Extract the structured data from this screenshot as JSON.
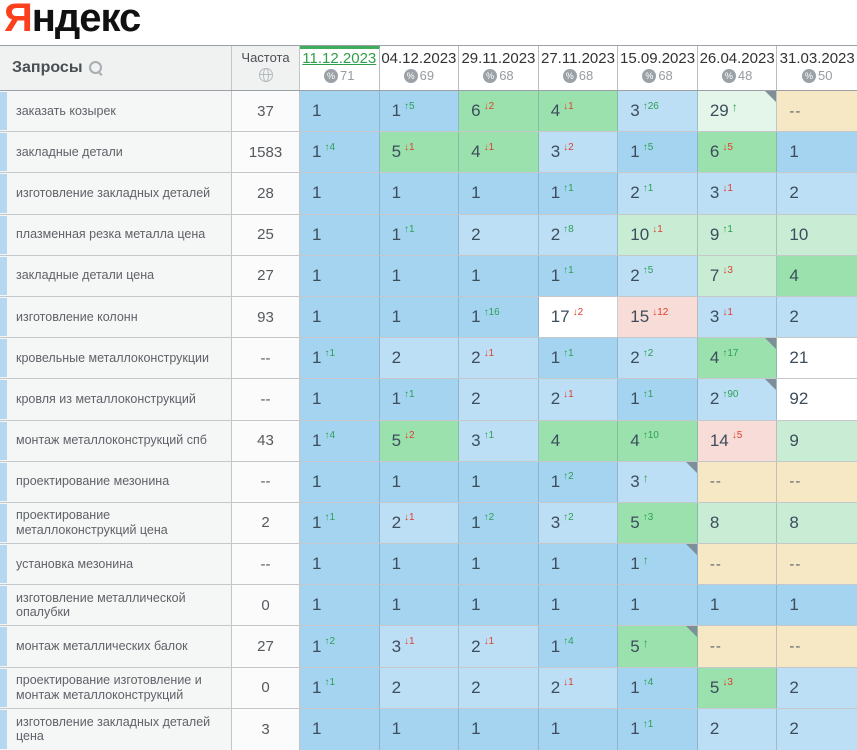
{
  "logo": {
    "ya": "Я",
    "rest": "ндекс"
  },
  "colors": {
    "b1": "#a5d4f1",
    "b2": "#bcdff6",
    "g1": "#9ae1ad",
    "g2": "#c8edd4",
    "g3": "#e4f5e9",
    "w": "#ffffff",
    "p": "#f8dcd8",
    "t": "#f6e8c5"
  },
  "header": {
    "queries_label": "Запросы",
    "frequency_label": "Частота",
    "percent_symbol": "%",
    "dates": [
      {
        "label": "11.12.2023",
        "coverage": "71",
        "selected": true
      },
      {
        "label": "04.12.2023",
        "coverage": "69",
        "selected": false
      },
      {
        "label": "29.11.2023",
        "coverage": "68",
        "selected": false
      },
      {
        "label": "27.11.2023",
        "coverage": "68",
        "selected": false
      },
      {
        "label": "15.09.2023",
        "coverage": "68",
        "selected": false
      },
      {
        "label": "26.04.2023",
        "coverage": "48",
        "selected": false
      },
      {
        "label": "31.03.2023",
        "coverage": "50",
        "selected": false
      }
    ]
  },
  "rows": [
    {
      "label": "заказать козырек",
      "freq": "37",
      "cells": [
        {
          "v": "1",
          "bg": "b1"
        },
        {
          "v": "1",
          "d": "5",
          "dir": "up",
          "bg": "b1"
        },
        {
          "v": "6",
          "d": "2",
          "dir": "down",
          "bg": "g1"
        },
        {
          "v": "4",
          "d": "1",
          "dir": "down",
          "bg": "g1"
        },
        {
          "v": "3",
          "d": "26",
          "dir": "up",
          "bg": "b2"
        },
        {
          "v": "29",
          "dir": "up",
          "bg": "g3",
          "corner": true
        },
        {
          "v": "--",
          "bg": "t"
        }
      ]
    },
    {
      "label": "закладные детали",
      "freq": "1583",
      "cells": [
        {
          "v": "1",
          "d": "4",
          "dir": "up",
          "bg": "b1"
        },
        {
          "v": "5",
          "d": "1",
          "dir": "down",
          "bg": "g1"
        },
        {
          "v": "4",
          "d": "1",
          "dir": "down",
          "bg": "g1"
        },
        {
          "v": "3",
          "d": "2",
          "dir": "down",
          "bg": "b2"
        },
        {
          "v": "1",
          "d": "5",
          "dir": "up",
          "bg": "b1"
        },
        {
          "v": "6",
          "d": "5",
          "dir": "down",
          "bg": "g1"
        },
        {
          "v": "1",
          "bg": "b1"
        }
      ]
    },
    {
      "label": "изготовление закладных деталей",
      "freq": "28",
      "cells": [
        {
          "v": "1",
          "bg": "b1"
        },
        {
          "v": "1",
          "bg": "b1"
        },
        {
          "v": "1",
          "bg": "b1"
        },
        {
          "v": "1",
          "d": "1",
          "dir": "up",
          "bg": "b1"
        },
        {
          "v": "2",
          "d": "1",
          "dir": "up",
          "bg": "b2"
        },
        {
          "v": "3",
          "d": "1",
          "dir": "down",
          "bg": "b2"
        },
        {
          "v": "2",
          "bg": "b2"
        }
      ]
    },
    {
      "label": "плазменная резка металла цена",
      "freq": "25",
      "cells": [
        {
          "v": "1",
          "bg": "b1"
        },
        {
          "v": "1",
          "d": "1",
          "dir": "up",
          "bg": "b1"
        },
        {
          "v": "2",
          "bg": "b2"
        },
        {
          "v": "2",
          "d": "8",
          "dir": "up",
          "bg": "b2"
        },
        {
          "v": "10",
          "d": "1",
          "dir": "down",
          "bg": "g2"
        },
        {
          "v": "9",
          "d": "1",
          "dir": "up",
          "bg": "g2"
        },
        {
          "v": "10",
          "bg": "g2"
        }
      ]
    },
    {
      "label": "закладные детали цена",
      "freq": "27",
      "cells": [
        {
          "v": "1",
          "bg": "b1"
        },
        {
          "v": "1",
          "bg": "b1"
        },
        {
          "v": "1",
          "bg": "b1"
        },
        {
          "v": "1",
          "d": "1",
          "dir": "up",
          "bg": "b1"
        },
        {
          "v": "2",
          "d": "5",
          "dir": "up",
          "bg": "b2"
        },
        {
          "v": "7",
          "d": "3",
          "dir": "down",
          "bg": "g2"
        },
        {
          "v": "4",
          "bg": "g1"
        }
      ]
    },
    {
      "label": "изготовление колонн",
      "freq": "93",
      "cells": [
        {
          "v": "1",
          "bg": "b1"
        },
        {
          "v": "1",
          "bg": "b1"
        },
        {
          "v": "1",
          "d": "16",
          "dir": "up",
          "bg": "b1"
        },
        {
          "v": "17",
          "d": "2",
          "dir": "down",
          "bg": "w"
        },
        {
          "v": "15",
          "d": "12",
          "dir": "down",
          "bg": "p"
        },
        {
          "v": "3",
          "d": "1",
          "dir": "down",
          "bg": "b2"
        },
        {
          "v": "2",
          "bg": "b2"
        }
      ]
    },
    {
      "label": "кровельные металлоконструкции",
      "freq": "--",
      "cells": [
        {
          "v": "1",
          "d": "1",
          "dir": "up",
          "bg": "b1"
        },
        {
          "v": "2",
          "bg": "b2"
        },
        {
          "v": "2",
          "d": "1",
          "dir": "down",
          "bg": "b2"
        },
        {
          "v": "1",
          "d": "1",
          "dir": "up",
          "bg": "b1"
        },
        {
          "v": "2",
          "d": "2",
          "dir": "up",
          "bg": "b2"
        },
        {
          "v": "4",
          "d": "17",
          "dir": "up",
          "bg": "g1",
          "corner": true
        },
        {
          "v": "21",
          "bg": "w"
        }
      ]
    },
    {
      "label": "кровля из металлоконструкций",
      "freq": "--",
      "cells": [
        {
          "v": "1",
          "bg": "b1"
        },
        {
          "v": "1",
          "d": "1",
          "dir": "up",
          "bg": "b1"
        },
        {
          "v": "2",
          "bg": "b2"
        },
        {
          "v": "2",
          "d": "1",
          "dir": "down",
          "bg": "b2"
        },
        {
          "v": "1",
          "d": "1",
          "dir": "up",
          "bg": "b1"
        },
        {
          "v": "2",
          "d": "90",
          "dir": "up",
          "bg": "b2",
          "corner": true
        },
        {
          "v": "92",
          "bg": "w"
        }
      ]
    },
    {
      "label": "монтаж металлоконструкций спб",
      "freq": "43",
      "cells": [
        {
          "v": "1",
          "d": "4",
          "dir": "up",
          "bg": "b1"
        },
        {
          "v": "5",
          "d": "2",
          "dir": "down",
          "bg": "g1"
        },
        {
          "v": "3",
          "d": "1",
          "dir": "up",
          "bg": "b2"
        },
        {
          "v": "4",
          "bg": "g1"
        },
        {
          "v": "4",
          "d": "10",
          "dir": "up",
          "bg": "g1"
        },
        {
          "v": "14",
          "d": "5",
          "dir": "down",
          "bg": "p"
        },
        {
          "v": "9",
          "bg": "g2"
        }
      ]
    },
    {
      "label": "проектирование мезонина",
      "freq": "--",
      "cells": [
        {
          "v": "1",
          "bg": "b1"
        },
        {
          "v": "1",
          "bg": "b1"
        },
        {
          "v": "1",
          "bg": "b1"
        },
        {
          "v": "1",
          "d": "2",
          "dir": "up",
          "bg": "b1"
        },
        {
          "v": "3",
          "dir": "up",
          "bg": "b2",
          "corner": true
        },
        {
          "v": "--",
          "bg": "t"
        },
        {
          "v": "--",
          "bg": "t"
        }
      ]
    },
    {
      "label": "проектирование металлоконструкций цена",
      "freq": "2",
      "cells": [
        {
          "v": "1",
          "d": "1",
          "dir": "up",
          "bg": "b1"
        },
        {
          "v": "2",
          "d": "1",
          "dir": "down",
          "bg": "b2"
        },
        {
          "v": "1",
          "d": "2",
          "dir": "up",
          "bg": "b1"
        },
        {
          "v": "3",
          "d": "2",
          "dir": "up",
          "bg": "b2"
        },
        {
          "v": "5",
          "d": "3",
          "dir": "up",
          "bg": "g1"
        },
        {
          "v": "8",
          "bg": "g2"
        },
        {
          "v": "8",
          "bg": "g2"
        }
      ]
    },
    {
      "label": "установка мезонина",
      "freq": "--",
      "cells": [
        {
          "v": "1",
          "bg": "b1"
        },
        {
          "v": "1",
          "bg": "b1"
        },
        {
          "v": "1",
          "bg": "b1"
        },
        {
          "v": "1",
          "bg": "b1"
        },
        {
          "v": "1",
          "dir": "up",
          "bg": "b1",
          "corner": true
        },
        {
          "v": "--",
          "bg": "t"
        },
        {
          "v": "--",
          "bg": "t"
        }
      ]
    },
    {
      "label": "изготовление металлической опалубки",
      "freq": "0",
      "cells": [
        {
          "v": "1",
          "bg": "b1"
        },
        {
          "v": "1",
          "bg": "b1"
        },
        {
          "v": "1",
          "bg": "b1"
        },
        {
          "v": "1",
          "bg": "b1"
        },
        {
          "v": "1",
          "bg": "b1"
        },
        {
          "v": "1",
          "bg": "b1"
        },
        {
          "v": "1",
          "bg": "b1"
        }
      ]
    },
    {
      "label": "монтаж металлических балок",
      "freq": "27",
      "cells": [
        {
          "v": "1",
          "d": "2",
          "dir": "up",
          "bg": "b1"
        },
        {
          "v": "3",
          "d": "1",
          "dir": "down",
          "bg": "b2"
        },
        {
          "v": "2",
          "d": "1",
          "dir": "down",
          "bg": "b2"
        },
        {
          "v": "1",
          "d": "4",
          "dir": "up",
          "bg": "b1"
        },
        {
          "v": "5",
          "dir": "up",
          "bg": "g1",
          "corner": true
        },
        {
          "v": "--",
          "bg": "t"
        },
        {
          "v": "--",
          "bg": "t"
        }
      ]
    },
    {
      "label": "проектирование изготовление и монтаж металлоконструкций",
      "freq": "0",
      "cells": [
        {
          "v": "1",
          "d": "1",
          "dir": "up",
          "bg": "b1"
        },
        {
          "v": "2",
          "bg": "b2"
        },
        {
          "v": "2",
          "bg": "b2"
        },
        {
          "v": "2",
          "d": "1",
          "dir": "down",
          "bg": "b2"
        },
        {
          "v": "1",
          "d": "4",
          "dir": "up",
          "bg": "b1"
        },
        {
          "v": "5",
          "d": "3",
          "dir": "down",
          "bg": "g1"
        },
        {
          "v": "2",
          "bg": "b2"
        }
      ]
    },
    {
      "label": "изготовление закладных деталей цена",
      "freq": "3",
      "cells": [
        {
          "v": "1",
          "bg": "b1"
        },
        {
          "v": "1",
          "bg": "b1"
        },
        {
          "v": "1",
          "bg": "b1"
        },
        {
          "v": "1",
          "bg": "b1"
        },
        {
          "v": "1",
          "d": "1",
          "dir": "up",
          "bg": "b1"
        },
        {
          "v": "2",
          "bg": "b2"
        },
        {
          "v": "2",
          "bg": "b2"
        }
      ]
    }
  ]
}
